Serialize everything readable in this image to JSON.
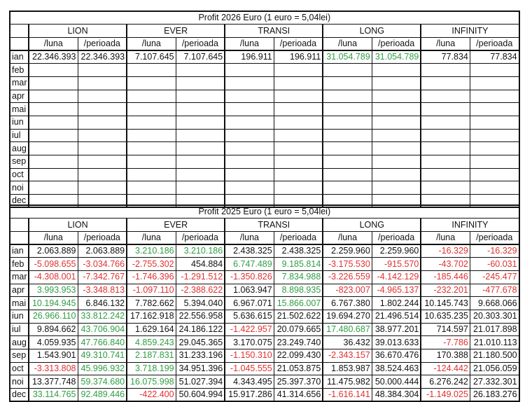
{
  "t2026": {
    "title": "Profit 2026 Euro (1 euro = 5,04lei)",
    "groups": [
      "LION",
      "EVER",
      "TRANSI",
      "LONG",
      "INFINITY"
    ],
    "sub": [
      "/luna",
      "/perioada"
    ],
    "rows": [
      {
        "m": "ian",
        "c": [
          [
            "22.346.393",
            "n"
          ],
          [
            "22.346.393",
            "n"
          ],
          [
            "7.107.645",
            "n"
          ],
          [
            "7.107.645",
            "n"
          ],
          [
            "196.911",
            "n"
          ],
          [
            "196.911",
            "n"
          ],
          [
            "31.054.789",
            "p"
          ],
          [
            "31.054.789",
            "p"
          ],
          [
            "77.834",
            "n"
          ],
          [
            "77.834",
            "n"
          ]
        ]
      },
      {
        "m": "feb",
        "c": []
      },
      {
        "m": "mar",
        "c": []
      },
      {
        "m": "apr",
        "c": []
      },
      {
        "m": "mai",
        "c": []
      },
      {
        "m": "iun",
        "c": []
      },
      {
        "m": "iul",
        "c": []
      },
      {
        "m": "aug",
        "c": []
      },
      {
        "m": "sep",
        "c": []
      },
      {
        "m": "oct",
        "c": []
      },
      {
        "m": "noi",
        "c": []
      },
      {
        "m": "dec",
        "c": []
      }
    ]
  },
  "t2025": {
    "title": "Profit 2025 Euro (1 euro = 5,04lei)",
    "groups": [
      "LION",
      "EVER",
      "TRANSI",
      "LONG",
      "INFINITY"
    ],
    "sub": [
      "/luna",
      "/perioada"
    ],
    "rows": [
      {
        "m": "ian",
        "c": [
          [
            "2.063.889",
            "n"
          ],
          [
            "2.063.889",
            "n"
          ],
          [
            "3.210.186",
            "p"
          ],
          [
            "3.210.186",
            "p"
          ],
          [
            "2.438.325",
            "n"
          ],
          [
            "2.438.325",
            "n"
          ],
          [
            "2.259.960",
            "n"
          ],
          [
            "2.259.960",
            "n"
          ],
          [
            "-16.329",
            "r"
          ],
          [
            "-16.329",
            "r"
          ]
        ]
      },
      {
        "m": "feb",
        "c": [
          [
            "-5.098.655",
            "r"
          ],
          [
            "-3.034.766",
            "r"
          ],
          [
            "-2.755.302",
            "r"
          ],
          [
            "454.884",
            "n"
          ],
          [
            "6.747.489",
            "p"
          ],
          [
            "9.185.814",
            "p"
          ],
          [
            "-3.175.530",
            "r"
          ],
          [
            "-915.570",
            "r"
          ],
          [
            "-43.702",
            "r"
          ],
          [
            "-60.031",
            "r"
          ]
        ]
      },
      {
        "m": "mar",
        "c": [
          [
            "-4.308.001",
            "r"
          ],
          [
            "-7.342.767",
            "r"
          ],
          [
            "-1.746.396",
            "r"
          ],
          [
            "-1.291.512",
            "r"
          ],
          [
            "-1.350.826",
            "r"
          ],
          [
            "7.834.988",
            "p"
          ],
          [
            "-3.226.559",
            "r"
          ],
          [
            "-4.142.129",
            "r"
          ],
          [
            "-185.446",
            "r"
          ],
          [
            "-245.477",
            "r"
          ]
        ]
      },
      {
        "m": "apr",
        "c": [
          [
            "3.993.953",
            "p"
          ],
          [
            "-3.348.813",
            "r"
          ],
          [
            "-1.097.110",
            "r"
          ],
          [
            "-2.388.622",
            "r"
          ],
          [
            "1.063.947",
            "n"
          ],
          [
            "8.898.935",
            "p"
          ],
          [
            "-823.007",
            "r"
          ],
          [
            "-4.965.137",
            "r"
          ],
          [
            "-232.201",
            "r"
          ],
          [
            "-477.678",
            "r"
          ]
        ]
      },
      {
        "m": "mai",
        "c": [
          [
            "10.194.945",
            "p"
          ],
          [
            "6.846.132",
            "n"
          ],
          [
            "7.782.662",
            "n"
          ],
          [
            "5.394.040",
            "n"
          ],
          [
            "6.967.071",
            "n"
          ],
          [
            "15.866.007",
            "p"
          ],
          [
            "6.767.380",
            "n"
          ],
          [
            "1.802.244",
            "n"
          ],
          [
            "10.145.743",
            "n"
          ],
          [
            "9.668.066",
            "n"
          ]
        ]
      },
      {
        "m": "iun",
        "c": [
          [
            "26.966.110",
            "p"
          ],
          [
            "33.812.242",
            "p"
          ],
          [
            "17.162.918",
            "n"
          ],
          [
            "22.556.958",
            "n"
          ],
          [
            "5.636.615",
            "n"
          ],
          [
            "21.502.622",
            "n"
          ],
          [
            "19.694.270",
            "n"
          ],
          [
            "21.496.514",
            "n"
          ],
          [
            "10.635.235",
            "n"
          ],
          [
            "20.303.301",
            "n"
          ]
        ]
      },
      {
        "m": "iul",
        "c": [
          [
            "9.894.662",
            "n"
          ],
          [
            "43.706.904",
            "p"
          ],
          [
            "1.629.164",
            "n"
          ],
          [
            "24.186.122",
            "n"
          ],
          [
            "-1.422.957",
            "r"
          ],
          [
            "20.079.665",
            "n"
          ],
          [
            "17.480.687",
            "p"
          ],
          [
            "38.977.201",
            "n"
          ],
          [
            "714.597",
            "n"
          ],
          [
            "21.017.898",
            "n"
          ]
        ]
      },
      {
        "m": "aug",
        "c": [
          [
            "4.059.935",
            "n"
          ],
          [
            "47.766.840",
            "p"
          ],
          [
            "4.859.243",
            "p"
          ],
          [
            "29.045.365",
            "n"
          ],
          [
            "3.170.075",
            "n"
          ],
          [
            "23.249.740",
            "n"
          ],
          [
            "36.432",
            "n"
          ],
          [
            "39.013.633",
            "n"
          ],
          [
            "-7.786",
            "r"
          ],
          [
            "21.010.113",
            "n"
          ]
        ]
      },
      {
        "m": "sep",
        "c": [
          [
            "1.543.901",
            "n"
          ],
          [
            "49.310.741",
            "p"
          ],
          [
            "2.187.831",
            "p"
          ],
          [
            "31.233.196",
            "n"
          ],
          [
            "-1.150.310",
            "r"
          ],
          [
            "22.099.430",
            "n"
          ],
          [
            "-2.343.157",
            "r"
          ],
          [
            "36.670.476",
            "n"
          ],
          [
            "170.388",
            "n"
          ],
          [
            "21.180.500",
            "n"
          ]
        ]
      },
      {
        "m": "oct",
        "c": [
          [
            "-3.313.808",
            "r"
          ],
          [
            "45.996.932",
            "p"
          ],
          [
            "3.718.199",
            "p"
          ],
          [
            "34.951.396",
            "n"
          ],
          [
            "-1.045.555",
            "r"
          ],
          [
            "21.053.875",
            "n"
          ],
          [
            "1.853.987",
            "n"
          ],
          [
            "38.524.463",
            "n"
          ],
          [
            "-124.442",
            "r"
          ],
          [
            "21.056.059",
            "n"
          ]
        ]
      },
      {
        "m": "noi",
        "c": [
          [
            "13.377.748",
            "n"
          ],
          [
            "59.374.680",
            "p"
          ],
          [
            "16.075.998",
            "p"
          ],
          [
            "51.027.394",
            "n"
          ],
          [
            "4.343.495",
            "n"
          ],
          [
            "25.397.370",
            "n"
          ],
          [
            "11.475.982",
            "n"
          ],
          [
            "50.000.444",
            "n"
          ],
          [
            "6.276.242",
            "n"
          ],
          [
            "27.332.301",
            "n"
          ]
        ]
      },
      {
        "m": "dec",
        "c": [
          [
            "33.114.765",
            "p"
          ],
          [
            "92.489.446",
            "p"
          ],
          [
            "-422.400",
            "r"
          ],
          [
            "50.604.994",
            "n"
          ],
          [
            "15.917.286",
            "n"
          ],
          [
            "41.314.656",
            "n"
          ],
          [
            "-1.616.141",
            "r"
          ],
          [
            "48.384.304",
            "n"
          ],
          [
            "-1.149.025",
            "r"
          ],
          [
            "26.183.276",
            "n"
          ]
        ]
      }
    ]
  }
}
